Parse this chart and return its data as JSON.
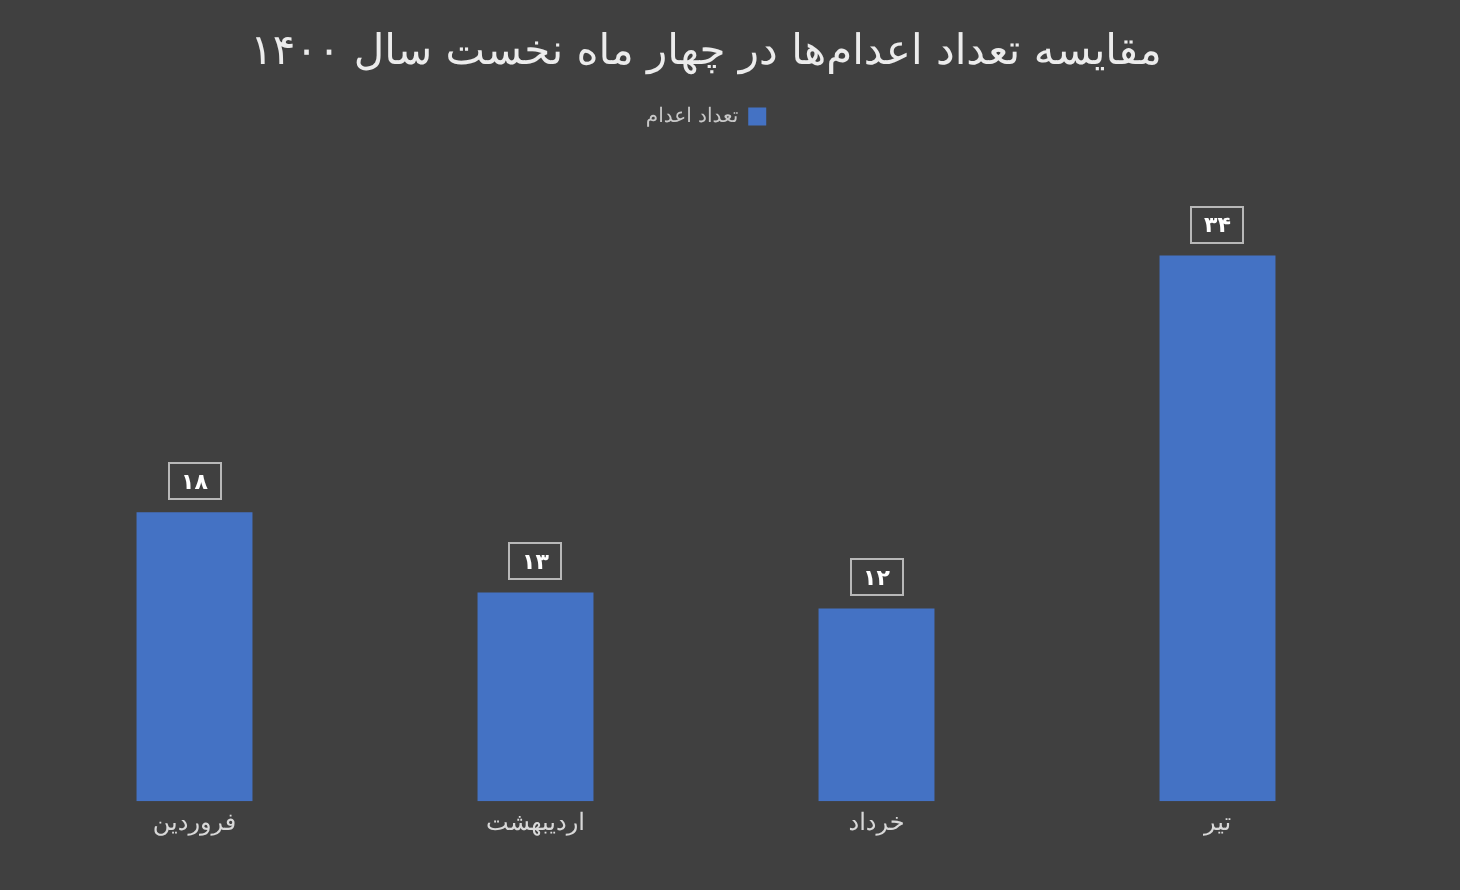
{
  "chart_data": {
    "type": "bar",
    "title": "مقایسه تعداد اعدام‌ها در چهار ماه نخست سال ۱۴۰۰",
    "categories": [
      "فروردین",
      "اردیبهشت",
      "خرداد",
      "تیر"
    ],
    "series": [
      {
        "name": "تعداد اعدام",
        "color": "#4472c4",
        "values": [
          18,
          13,
          12,
          34
        ],
        "value_labels": [
          "۱۸",
          "۱۳",
          "۱۲",
          "۳۴"
        ]
      }
    ],
    "legend": "top",
    "tick_labels": "x"
  }
}
